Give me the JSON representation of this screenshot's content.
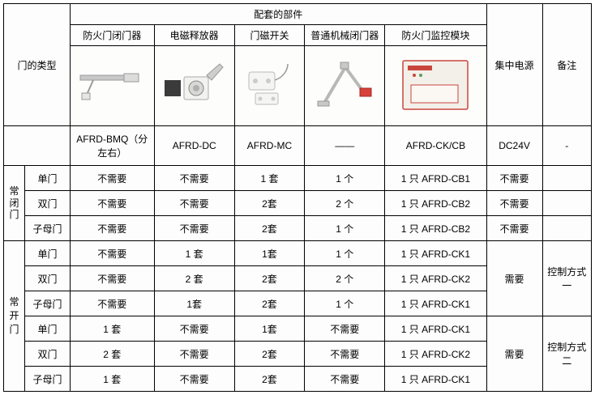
{
  "table": {
    "rowLabel": "门的类型",
    "topHeader": "配套的部件",
    "colHeaders": [
      "防火门闭门器",
      "电磁释放器",
      "门磁开关",
      "普通机械闭门器",
      "防火门监控模块",
      "集中电源",
      "备注"
    ],
    "models": [
      "AFRD-BMQ（分左右）",
      "AFRD-DC",
      "AFRD-MC",
      "――",
      "AFRD-CK/CB",
      "DC24V",
      "-"
    ],
    "groups": [
      {
        "name": "常闭门",
        "rows": [
          {
            "door": "单门",
            "cells": [
              "不需要",
              "不需要",
              "1 套",
              "1 个",
              "1 只 AFRD-CB1",
              "不需要",
              ""
            ]
          },
          {
            "door": "双门",
            "cells": [
              "不需要",
              "不需要",
              "2套",
              "2 个",
              "1 只 AFRD-CB2",
              "不需要",
              ""
            ]
          },
          {
            "door": "子母门",
            "cells": [
              "不需要",
              "不需要",
              "2套",
              "1 个",
              "1 只 AFRD-CB2",
              "不需要",
              ""
            ]
          }
        ]
      },
      {
        "name": "常开门",
        "subgroups": [
          {
            "rows": [
              {
                "door": "单门",
                "cells": [
                  "不需要",
                  "1 套",
                  "1套",
                  "1 个",
                  "1 只 AFRD-CK1"
                ]
              },
              {
                "door": "双门",
                "cells": [
                  "不需要",
                  "2 套",
                  "2套",
                  "2 个",
                  "1 只 AFRD-CK2"
                ]
              },
              {
                "door": "子母门",
                "cells": [
                  "不需要",
                  "1套",
                  "2套",
                  "1 个",
                  "1 只 AFRD-CK1"
                ]
              }
            ],
            "power": "需要",
            "note": "控制方式一"
          },
          {
            "rows": [
              {
                "door": "单门",
                "cells": [
                  "1 套",
                  "不需要",
                  "1套",
                  "不需要",
                  "1 只 AFRD-CK1"
                ]
              },
              {
                "door": "双门",
                "cells": [
                  "2 套",
                  "不需要",
                  "2套",
                  "不需要",
                  "1 只 AFRD-CK2"
                ]
              },
              {
                "door": "子母门",
                "cells": [
                  "1 套",
                  "不需要",
                  "2套",
                  "不需要",
                  "1 只 AFRD-CK1"
                ]
              }
            ],
            "power": "需要",
            "note": "控制方式二"
          }
        ]
      }
    ],
    "colWidths": {
      "vert": 24,
      "door": 52,
      "comp": 96,
      "power": 64,
      "note": 54
    }
  }
}
